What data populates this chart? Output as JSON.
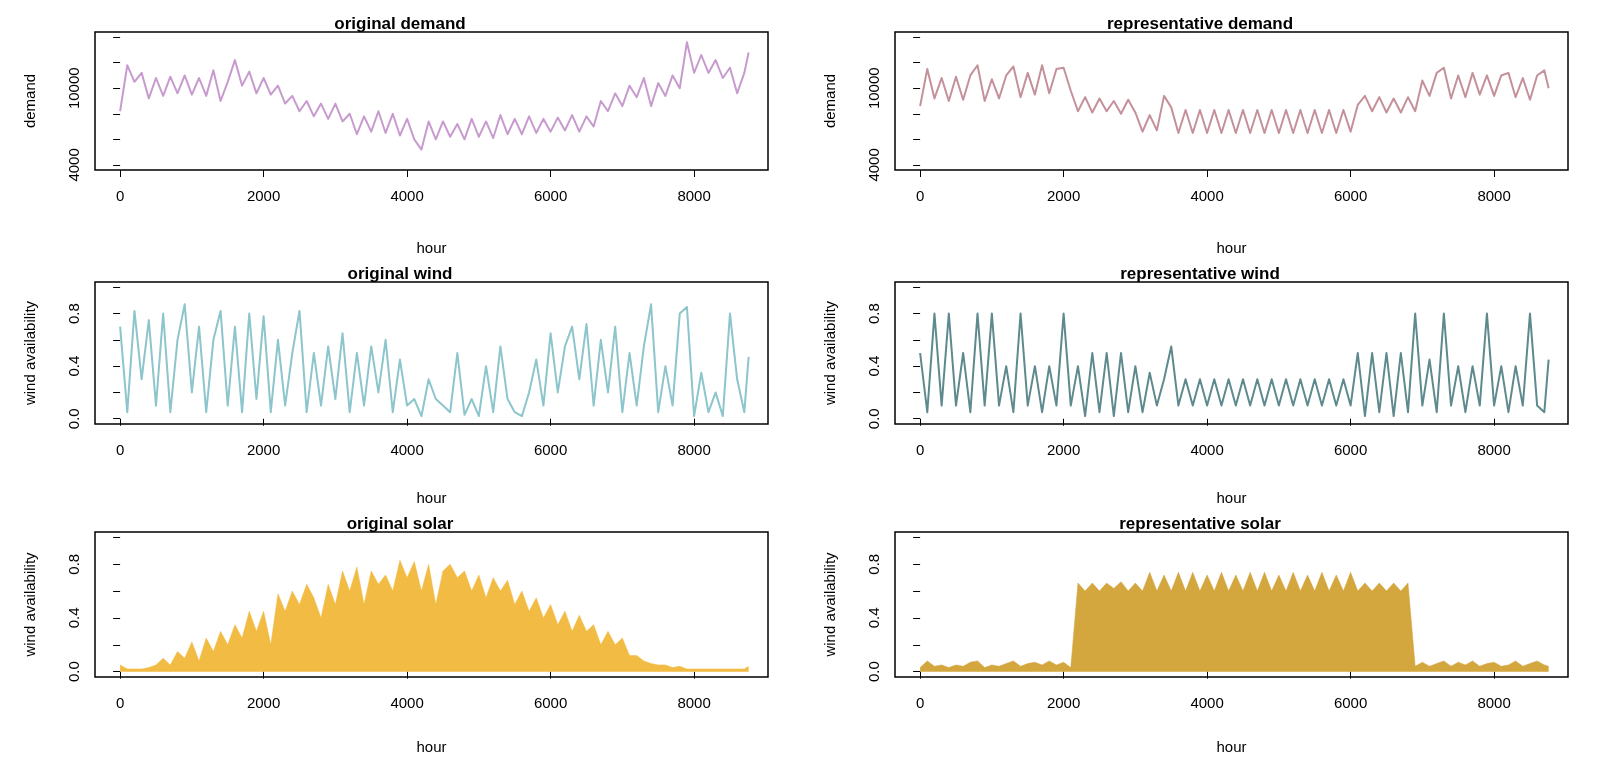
{
  "chart_data": [
    {
      "type": "line",
      "title": "original demand",
      "xlabel": "hour",
      "ylabel": "demand",
      "color": "#c89bcf",
      "xlim": [
        -350,
        9030
      ],
      "ylim": [
        3600,
        14400
      ],
      "xticks": [
        0,
        2000,
        4000,
        6000,
        8000
      ],
      "yticks": [
        {
          "value": 4000,
          "label": "4000"
        },
        {
          "value": 6000,
          "label": null
        },
        {
          "value": 8000,
          "label": null
        },
        {
          "value": 10000,
          "label": "10000"
        },
        {
          "value": 12000,
          "label": null
        },
        {
          "value": 14000,
          "label": null
        }
      ],
      "x": [
        0,
        100,
        200,
        300,
        400,
        500,
        600,
        700,
        800,
        900,
        1000,
        1100,
        1200,
        1300,
        1400,
        1500,
        1600,
        1700,
        1800,
        1900,
        2000,
        2100,
        2200,
        2300,
        2400,
        2500,
        2600,
        2700,
        2800,
        2900,
        3000,
        3100,
        3200,
        3300,
        3400,
        3500,
        3600,
        3700,
        3800,
        3900,
        4000,
        4100,
        4200,
        4300,
        4400,
        4500,
        4600,
        4700,
        4800,
        4900,
        5000,
        5100,
        5200,
        5300,
        5400,
        5500,
        5600,
        5700,
        5800,
        5900,
        6000,
        6100,
        6200,
        6300,
        6400,
        6500,
        6600,
        6700,
        6800,
        6900,
        7000,
        7100,
        7200,
        7300,
        7400,
        7500,
        7600,
        7700,
        7800,
        7900,
        8000,
        8100,
        8200,
        8300,
        8400,
        8500,
        8600,
        8700,
        8760
      ],
      "values": [
        8200,
        11800,
        10500,
        11200,
        9200,
        10800,
        9400,
        10900,
        9600,
        11000,
        9500,
        10800,
        9400,
        11400,
        9000,
        10500,
        12200,
        10200,
        11300,
        9600,
        10800,
        9500,
        10200,
        8800,
        9400,
        8200,
        9000,
        7800,
        8800,
        7600,
        8800,
        7400,
        8000,
        6400,
        7800,
        6600,
        8200,
        6500,
        8000,
        6300,
        7600,
        6000,
        5200,
        7400,
        6000,
        7400,
        6200,
        7200,
        6000,
        7600,
        6200,
        7400,
        6100,
        7900,
        6400,
        7600,
        6400,
        7800,
        6500,
        7600,
        6600,
        7700,
        6700,
        7900,
        6600,
        7800,
        7000,
        9000,
        8200,
        9600,
        8600,
        10200,
        9300,
        10800,
        8600,
        10400,
        9400,
        11000,
        10000,
        13600,
        11200,
        12600,
        11200,
        12200,
        10800,
        11600,
        9600,
        11200,
        12800
      ]
    },
    {
      "type": "line",
      "title": "representative demand",
      "xlabel": "hour",
      "ylabel": "demand",
      "color": "#c4919a",
      "xlim": [
        -350,
        9030
      ],
      "ylim": [
        3600,
        14400
      ],
      "xticks": [
        0,
        2000,
        4000,
        6000,
        8000
      ],
      "yticks": [
        {
          "value": 4000,
          "label": "4000"
        },
        {
          "value": 6000,
          "label": null
        },
        {
          "value": 8000,
          "label": null
        },
        {
          "value": 10000,
          "label": "10000"
        },
        {
          "value": 12000,
          "label": null
        },
        {
          "value": 14000,
          "label": null
        }
      ],
      "x": [
        0,
        100,
        200,
        300,
        400,
        500,
        600,
        700,
        800,
        900,
        1000,
        1100,
        1200,
        1300,
        1400,
        1500,
        1600,
        1700,
        1800,
        1900,
        2000,
        2100,
        2200,
        2300,
        2400,
        2500,
        2600,
        2700,
        2800,
        2900,
        3000,
        3100,
        3200,
        3300,
        3400,
        3500,
        3600,
        3700,
        3800,
        3900,
        4000,
        4100,
        4200,
        4300,
        4400,
        4500,
        4600,
        4700,
        4800,
        4900,
        5000,
        5100,
        5200,
        5300,
        5400,
        5500,
        5600,
        5700,
        5800,
        5900,
        6000,
        6100,
        6200,
        6300,
        6400,
        6500,
        6600,
        6700,
        6800,
        6900,
        7000,
        7100,
        7200,
        7300,
        7400,
        7500,
        7600,
        7700,
        7800,
        7900,
        8000,
        8100,
        8200,
        8300,
        8400,
        8500,
        8600,
        8700,
        8760
      ],
      "values": [
        8600,
        11500,
        9200,
        10800,
        9000,
        10900,
        9100,
        11000,
        11800,
        9000,
        10700,
        9200,
        11000,
        11700,
        9300,
        11200,
        9500,
        11800,
        9600,
        11500,
        11600,
        9800,
        8200,
        9300,
        8100,
        9200,
        8200,
        9000,
        8000,
        9100,
        8100,
        6600,
        7900,
        6700,
        9400,
        8500,
        6500,
        8300,
        6500,
        8300,
        6500,
        8300,
        6500,
        8300,
        6500,
        8300,
        6500,
        8300,
        6500,
        8300,
        6500,
        8300,
        6500,
        8300,
        6500,
        8300,
        6500,
        8300,
        6500,
        8300,
        6600,
        8700,
        9400,
        8200,
        9300,
        8100,
        9200,
        8100,
        9300,
        8200,
        10600,
        9400,
        11200,
        11600,
        9200,
        11000,
        9300,
        11200,
        9500,
        11000,
        9400,
        11000,
        11200,
        9300,
        10800,
        9100,
        11000,
        11400,
        10000
      ]
    },
    {
      "type": "line",
      "title": "original wind",
      "xlabel": "hour",
      "ylabel": "wind availability",
      "color": "#8cc5cc",
      "xlim": [
        -350,
        9030
      ],
      "ylim": [
        -0.04,
        1.04
      ],
      "xticks": [
        0,
        2000,
        4000,
        6000,
        8000
      ],
      "yticks": [
        {
          "value": 0,
          "label": "0.0"
        },
        {
          "value": 0.2,
          "label": null
        },
        {
          "value": 0.4,
          "label": "0.4"
        },
        {
          "value": 0.6,
          "label": null
        },
        {
          "value": 0.8,
          "label": "0.8"
        },
        {
          "value": 1,
          "label": null
        }
      ],
      "x": [
        0,
        100,
        200,
        300,
        400,
        500,
        600,
        700,
        800,
        900,
        1000,
        1100,
        1200,
        1300,
        1400,
        1500,
        1600,
        1700,
        1800,
        1900,
        2000,
        2100,
        2200,
        2300,
        2400,
        2500,
        2600,
        2700,
        2800,
        2900,
        3000,
        3100,
        3200,
        3300,
        3400,
        3500,
        3600,
        3700,
        3800,
        3900,
        4000,
        4100,
        4200,
        4300,
        4400,
        4500,
        4600,
        4700,
        4800,
        4900,
        5000,
        5100,
        5200,
        5300,
        5400,
        5500,
        5600,
        5700,
        5800,
        5900,
        6000,
        6100,
        6200,
        6300,
        6400,
        6500,
        6600,
        6700,
        6800,
        6900,
        7000,
        7100,
        7200,
        7300,
        7400,
        7500,
        7600,
        7700,
        7800,
        7900,
        8000,
        8100,
        8200,
        8300,
        8400,
        8500,
        8600,
        8700,
        8760
      ],
      "values": [
        0.7,
        0.05,
        0.82,
        0.3,
        0.75,
        0.1,
        0.8,
        0.05,
        0.6,
        0.87,
        0.2,
        0.7,
        0.05,
        0.6,
        0.82,
        0.1,
        0.7,
        0.05,
        0.8,
        0.15,
        0.78,
        0.05,
        0.6,
        0.1,
        0.5,
        0.82,
        0.05,
        0.5,
        0.1,
        0.55,
        0.15,
        0.65,
        0.05,
        0.5,
        0.1,
        0.55,
        0.2,
        0.6,
        0.05,
        0.45,
        0.1,
        0.15,
        0.02,
        0.3,
        0.15,
        0.1,
        0.05,
        0.5,
        0.03,
        0.15,
        0.02,
        0.4,
        0.05,
        0.55,
        0.15,
        0.05,
        0.02,
        0.2,
        0.45,
        0.1,
        0.65,
        0.2,
        0.55,
        0.7,
        0.3,
        0.72,
        0.1,
        0.6,
        0.2,
        0.7,
        0.05,
        0.5,
        0.1,
        0.55,
        0.87,
        0.05,
        0.4,
        0.1,
        0.8,
        0.85,
        0.02,
        0.35,
        0.05,
        0.2,
        0.02,
        0.8,
        0.3,
        0.05,
        0.47
      ]
    },
    {
      "type": "line",
      "title": "representative wind",
      "xlabel": "hour",
      "ylabel": "wind availability",
      "color": "#5e8a8e",
      "xlim": [
        -350,
        9030
      ],
      "ylim": [
        -0.04,
        1.04
      ],
      "xticks": [
        0,
        2000,
        4000,
        6000,
        8000
      ],
      "yticks": [
        {
          "value": 0,
          "label": "0.0"
        },
        {
          "value": 0.2,
          "label": null
        },
        {
          "value": 0.4,
          "label": "0.4"
        },
        {
          "value": 0.6,
          "label": null
        },
        {
          "value": 0.8,
          "label": "0.8"
        },
        {
          "value": 1,
          "label": null
        }
      ],
      "x": [
        0,
        100,
        200,
        300,
        400,
        500,
        600,
        700,
        800,
        900,
        1000,
        1100,
        1200,
        1300,
        1400,
        1500,
        1600,
        1700,
        1800,
        1900,
        2000,
        2100,
        2200,
        2300,
        2400,
        2500,
        2600,
        2700,
        2800,
        2900,
        3000,
        3100,
        3200,
        3300,
        3400,
        3500,
        3600,
        3700,
        3800,
        3900,
        4000,
        4100,
        4200,
        4300,
        4400,
        4500,
        4600,
        4700,
        4800,
        4900,
        5000,
        5100,
        5200,
        5300,
        5400,
        5500,
        5600,
        5700,
        5800,
        5900,
        6000,
        6100,
        6200,
        6300,
        6400,
        6500,
        6600,
        6700,
        6800,
        6900,
        7000,
        7100,
        7200,
        7300,
        7400,
        7500,
        7600,
        7700,
        7800,
        7900,
        8000,
        8100,
        8200,
        8300,
        8400,
        8500,
        8600,
        8700,
        8760
      ],
      "values": [
        0.5,
        0.05,
        0.8,
        0.1,
        0.8,
        0.1,
        0.5,
        0.05,
        0.8,
        0.1,
        0.8,
        0.1,
        0.4,
        0.05,
        0.8,
        0.1,
        0.4,
        0.05,
        0.4,
        0.1,
        0.8,
        0.1,
        0.4,
        0.02,
        0.5,
        0.05,
        0.5,
        0.02,
        0.5,
        0.05,
        0.4,
        0.05,
        0.35,
        0.1,
        0.3,
        0.55,
        0.1,
        0.3,
        0.1,
        0.3,
        0.1,
        0.3,
        0.1,
        0.3,
        0.1,
        0.3,
        0.1,
        0.3,
        0.1,
        0.3,
        0.1,
        0.3,
        0.1,
        0.3,
        0.1,
        0.3,
        0.1,
        0.3,
        0.1,
        0.3,
        0.1,
        0.5,
        0.02,
        0.5,
        0.05,
        0.5,
        0.02,
        0.5,
        0.05,
        0.8,
        0.1,
        0.45,
        0.05,
        0.8,
        0.1,
        0.4,
        0.05,
        0.4,
        0.1,
        0.8,
        0.1,
        0.4,
        0.05,
        0.4,
        0.1,
        0.8,
        0.1,
        0.05,
        0.45
      ]
    },
    {
      "type": "area",
      "title": "original solar",
      "xlabel": "hour",
      "ylabel": "wind availability",
      "color": "#f2bb44",
      "xlim": [
        -350,
        9030
      ],
      "ylim": [
        -0.04,
        1.04
      ],
      "xticks": [
        0,
        2000,
        4000,
        6000,
        8000
      ],
      "yticks": [
        {
          "value": 0,
          "label": "0.0"
        },
        {
          "value": 0.2,
          "label": null
        },
        {
          "value": 0.4,
          "label": "0.4"
        },
        {
          "value": 0.6,
          "label": null
        },
        {
          "value": 0.8,
          "label": "0.8"
        },
        {
          "value": 1,
          "label": null
        }
      ],
      "x": [
        0,
        100,
        200,
        300,
        400,
        500,
        600,
        700,
        800,
        900,
        1000,
        1100,
        1200,
        1300,
        1400,
        1500,
        1600,
        1700,
        1800,
        1900,
        2000,
        2100,
        2200,
        2300,
        2400,
        2500,
        2600,
        2700,
        2800,
        2900,
        3000,
        3100,
        3200,
        3300,
        3400,
        3500,
        3600,
        3700,
        3800,
        3900,
        4000,
        4100,
        4200,
        4300,
        4400,
        4500,
        4600,
        4700,
        4800,
        4900,
        5000,
        5100,
        5200,
        5300,
        5400,
        5500,
        5600,
        5700,
        5800,
        5900,
        6000,
        6100,
        6200,
        6300,
        6400,
        6500,
        6600,
        6700,
        6800,
        6900,
        7000,
        7100,
        7200,
        7300,
        7400,
        7500,
        7600,
        7700,
        7800,
        7900,
        8000,
        8100,
        8200,
        8300,
        8400,
        8500,
        8600,
        8700,
        8760
      ],
      "values": [
        0.05,
        0.02,
        0.02,
        0.02,
        0.03,
        0.05,
        0.1,
        0.05,
        0.15,
        0.1,
        0.22,
        0.08,
        0.25,
        0.15,
        0.3,
        0.2,
        0.35,
        0.25,
        0.45,
        0.3,
        0.45,
        0.2,
        0.58,
        0.45,
        0.6,
        0.5,
        0.65,
        0.55,
        0.4,
        0.65,
        0.5,
        0.75,
        0.6,
        0.78,
        0.5,
        0.75,
        0.65,
        0.72,
        0.6,
        0.83,
        0.7,
        0.82,
        0.6,
        0.8,
        0.5,
        0.75,
        0.8,
        0.7,
        0.75,
        0.6,
        0.72,
        0.55,
        0.7,
        0.6,
        0.68,
        0.5,
        0.6,
        0.45,
        0.55,
        0.4,
        0.5,
        0.35,
        0.45,
        0.3,
        0.42,
        0.3,
        0.35,
        0.2,
        0.3,
        0.2,
        0.25,
        0.12,
        0.12,
        0.08,
        0.06,
        0.05,
        0.05,
        0.03,
        0.04,
        0.02,
        0.02,
        0.02,
        0.02,
        0.02,
        0.02,
        0.02,
        0.02,
        0.02,
        0.04
      ]
    },
    {
      "type": "area",
      "title": "representative solar",
      "xlabel": "hour",
      "ylabel": "wind availability",
      "color": "#d3a63e",
      "xlim": [
        -350,
        9030
      ],
      "ylim": [
        -0.04,
        1.04
      ],
      "xticks": [
        0,
        2000,
        4000,
        6000,
        8000
      ],
      "yticks": [
        {
          "value": 0,
          "label": "0.0"
        },
        {
          "value": 0.2,
          "label": null
        },
        {
          "value": 0.4,
          "label": "0.4"
        },
        {
          "value": 0.6,
          "label": null
        },
        {
          "value": 0.8,
          "label": "0.8"
        },
        {
          "value": 1,
          "label": null
        }
      ],
      "x": [
        0,
        100,
        200,
        300,
        400,
        500,
        600,
        700,
        800,
        900,
        1000,
        1100,
        1200,
        1300,
        1400,
        1500,
        1600,
        1700,
        1800,
        1900,
        2000,
        2100,
        2200,
        2300,
        2400,
        2500,
        2600,
        2700,
        2800,
        2900,
        3000,
        3100,
        3200,
        3300,
        3400,
        3500,
        3600,
        3700,
        3800,
        3900,
        4000,
        4100,
        4200,
        4300,
        4400,
        4500,
        4600,
        4700,
        4800,
        4900,
        5000,
        5100,
        5200,
        5300,
        5400,
        5500,
        5600,
        5700,
        5800,
        5900,
        6000,
        6100,
        6200,
        6300,
        6400,
        6500,
        6600,
        6700,
        6800,
        6900,
        7000,
        7100,
        7200,
        7300,
        7400,
        7500,
        7600,
        7700,
        7800,
        7900,
        8000,
        8100,
        8200,
        8300,
        8400,
        8500,
        8600,
        8700,
        8760
      ],
      "values": [
        0.03,
        0.08,
        0.04,
        0.05,
        0.03,
        0.05,
        0.04,
        0.07,
        0.08,
        0.03,
        0.05,
        0.04,
        0.06,
        0.08,
        0.04,
        0.06,
        0.07,
        0.05,
        0.08,
        0.05,
        0.07,
        0.03,
        0.66,
        0.6,
        0.66,
        0.6,
        0.66,
        0.62,
        0.67,
        0.6,
        0.66,
        0.6,
        0.74,
        0.6,
        0.72,
        0.6,
        0.74,
        0.6,
        0.74,
        0.6,
        0.72,
        0.6,
        0.74,
        0.6,
        0.72,
        0.6,
        0.74,
        0.6,
        0.74,
        0.6,
        0.72,
        0.6,
        0.74,
        0.6,
        0.72,
        0.6,
        0.74,
        0.6,
        0.72,
        0.6,
        0.74,
        0.6,
        0.66,
        0.6,
        0.66,
        0.6,
        0.66,
        0.6,
        0.66,
        0.04,
        0.07,
        0.04,
        0.06,
        0.08,
        0.04,
        0.07,
        0.05,
        0.08,
        0.04,
        0.06,
        0.07,
        0.04,
        0.05,
        0.08,
        0.04,
        0.06,
        0.08,
        0.05,
        0.04
      ]
    }
  ]
}
